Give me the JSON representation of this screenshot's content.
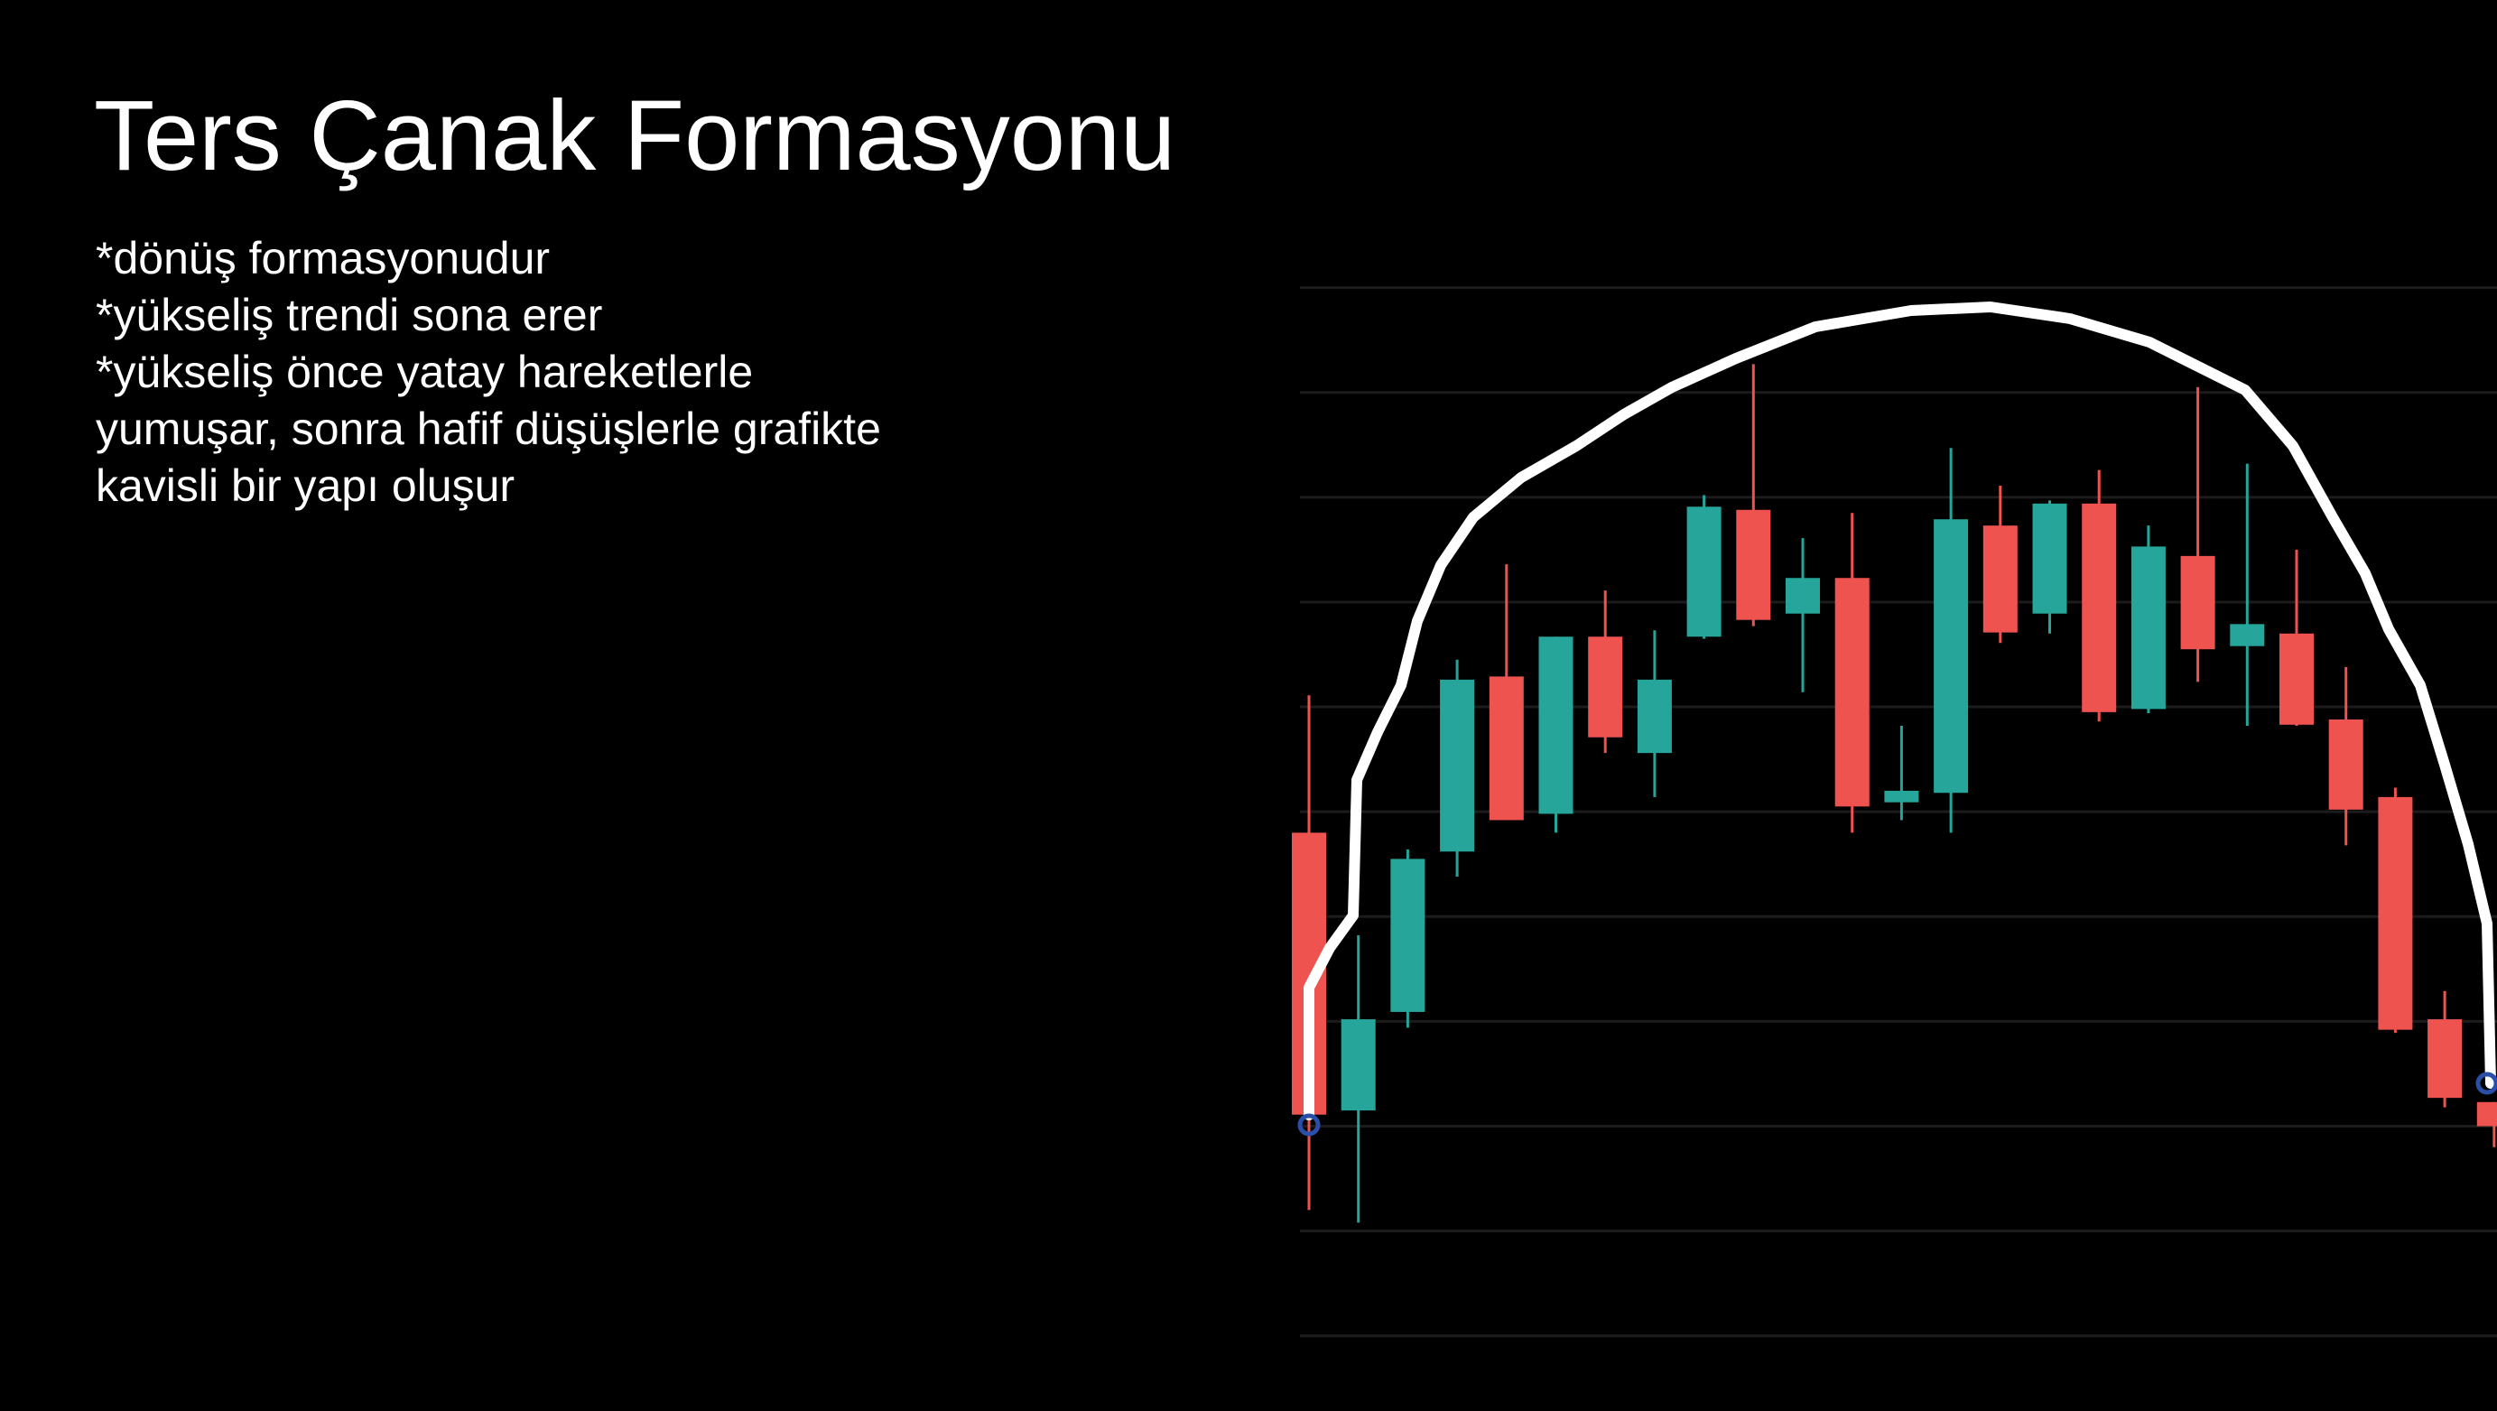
{
  "chart_data": {
    "type": "candlestick",
    "title": "Ters Çanak Formasyonu",
    "annotations": [
      "*dönüş formasyonudur",
      "*yükseliş trendi sona erer",
      "*yükseliş önce yatay hareketlerle",
      "yumuşar, sonra hafif düşüşlerle grafikte",
      "kavisli bir yapı oluşur"
    ],
    "open": [
      48.0,
      21.5,
      30.9,
      46.2,
      62.9,
      49.8,
      66.7,
      55.6,
      66.7,
      78.8,
      68.9,
      72.3,
      50.9,
      51.8,
      77.3,
      68.9,
      79.4,
      59.8,
      74.4,
      65.8,
      67.0,
      58.8,
      51.4,
      30.2,
      22.3
    ],
    "high": [
      61.1,
      38.2,
      46.4,
      64.5,
      73.6,
      66.7,
      71.1,
      67.3,
      80.2,
      92.7,
      76.1,
      78.5,
      58.2,
      84.7,
      81.1,
      79.7,
      82.6,
      77.3,
      90.5,
      83.2,
      75.0,
      63.8,
      52.3,
      32.9,
      22.3
    ],
    "low": [
      12.0,
      10.8,
      29.4,
      43.8,
      49.2,
      48.0,
      55.6,
      51.4,
      66.5,
      67.7,
      61.4,
      48.0,
      49.2,
      48.0,
      66.1,
      67.0,
      58.6,
      59.4,
      62.4,
      58.2,
      58.2,
      46.8,
      28.9,
      21.8,
      18.0
    ],
    "close": [
      21.1,
      30.2,
      45.5,
      62.6,
      49.2,
      66.7,
      57.1,
      62.6,
      79.1,
      68.3,
      72.3,
      50.5,
      52.0,
      77.9,
      67.1,
      79.4,
      59.5,
      75.3,
      65.5,
      67.9,
      58.3,
      50.2,
      29.2,
      22.7,
      20.0
    ],
    "up_color": "#26a69a",
    "down_color": "#ef5350",
    "ylim": [
      -7,
      101
    ],
    "yticks": [
      0,
      10,
      20,
      30,
      40,
      50,
      60,
      70,
      80,
      90,
      100
    ],
    "grid": true
  }
}
